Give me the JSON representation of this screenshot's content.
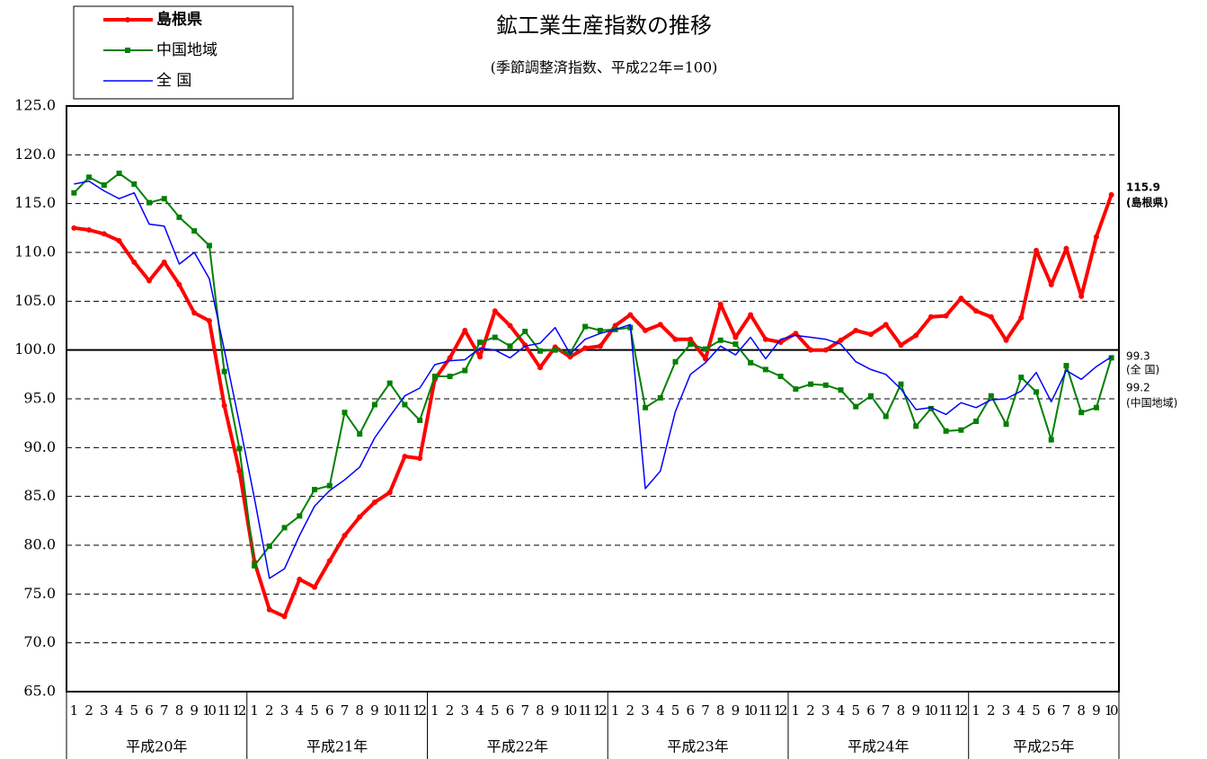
{
  "chart_data": {
    "type": "line",
    "title": "鉱工業生産指数の推移",
    "subtitle": "(季節調整済指数、平成22年=100)",
    "categories": [
      "1",
      "2",
      "3",
      "4",
      "5",
      "6",
      "7",
      "8",
      "9",
      "10",
      "11",
      "12",
      "1",
      "2",
      "3",
      "4",
      "5",
      "6",
      "7",
      "8",
      "9",
      "10",
      "11",
      "12",
      "1",
      "2",
      "3",
      "4",
      "5",
      "6",
      "7",
      "8",
      "9",
      "10",
      "11",
      "12",
      "1",
      "2",
      "3",
      "4",
      "5",
      "6",
      "7",
      "8",
      "9",
      "10",
      "11",
      "12",
      "1",
      "2",
      "3",
      "4",
      "5",
      "6",
      "7",
      "8",
      "9",
      "10",
      "11",
      "12",
      "1",
      "2",
      "3",
      "4",
      "5",
      "6",
      "7",
      "8",
      "9",
      "10"
    ],
    "year_labels": [
      "平成20年",
      "平成21年",
      "平成22年",
      "平成23年",
      "平成24年",
      "平成25年"
    ],
    "series": [
      {
        "name": "島根県",
        "color": "#ff0000",
        "marker": "circle",
        "width": 4,
        "values": [
          112.5,
          112.3,
          111.9,
          111.2,
          109.0,
          107.1,
          109.0,
          106.7,
          103.8,
          103.0,
          94.3,
          87.6,
          78.3,
          73.4,
          72.7,
          76.5,
          75.7,
          78.4,
          81.0,
          82.9,
          84.4,
          85.4,
          89.1,
          88.9,
          97.0,
          99.2,
          102.0,
          99.3,
          104.0,
          102.5,
          100.5,
          98.2,
          100.3,
          99.3,
          100.2,
          100.4,
          102.5,
          103.6,
          102.0,
          102.6,
          101.1,
          101.1,
          99.1,
          104.7,
          101.3,
          103.6,
          101.1,
          100.8,
          101.7,
          100.0,
          100.0,
          101.0,
          102.0,
          101.6,
          102.6,
          100.5,
          101.5,
          103.4,
          103.5,
          105.3,
          104.0,
          103.4,
          101.0,
          103.3,
          110.2,
          106.7,
          110.4,
          105.5,
          111.6,
          115.9
        ]
      },
      {
        "name": "中国地域",
        "color": "#008000",
        "marker": "square",
        "width": 2,
        "values": [
          116.1,
          117.7,
          116.9,
          118.1,
          117.0,
          115.1,
          115.5,
          113.6,
          112.2,
          110.7,
          97.8,
          89.9,
          77.9,
          79.9,
          81.8,
          83.0,
          85.7,
          86.1,
          93.6,
          91.4,
          94.4,
          96.6,
          94.4,
          92.8,
          97.3,
          97.3,
          97.9,
          100.8,
          101.3,
          100.4,
          101.9,
          99.9,
          100.0,
          99.7,
          102.4,
          102.0,
          102.1,
          102.3,
          94.1,
          95.1,
          98.8,
          100.6,
          100.1,
          101.0,
          100.6,
          98.7,
          98.0,
          97.3,
          96.0,
          96.5,
          96.4,
          95.9,
          94.2,
          95.3,
          93.2,
          96.5,
          92.2,
          94.0,
          91.7,
          91.8,
          92.7,
          95.3,
          92.4,
          97.2,
          95.7,
          90.8,
          98.4,
          93.6,
          94.1,
          99.2
        ]
      },
      {
        "name": "全 国",
        "color": "#0000ff",
        "marker": "none",
        "width": 1.5,
        "values": [
          117.0,
          117.3,
          116.3,
          115.5,
          116.1,
          112.9,
          112.7,
          108.8,
          110.0,
          107.3,
          100.0,
          92.5,
          84.8,
          76.6,
          77.6,
          81.0,
          84.0,
          85.6,
          86.7,
          88.0,
          91.0,
          93.2,
          95.3,
          96.1,
          98.5,
          98.9,
          99.0,
          100.2,
          100.0,
          99.2,
          100.4,
          100.7,
          102.3,
          99.6,
          101.1,
          101.7,
          102.1,
          102.6,
          85.8,
          87.6,
          93.7,
          97.5,
          98.7,
          100.4,
          99.5,
          101.3,
          99.1,
          101.1,
          101.5,
          101.3,
          101.1,
          100.6,
          98.8,
          98.0,
          97.5,
          96.0,
          93.9,
          94.1,
          93.4,
          94.6,
          94.1,
          94.9,
          95.0,
          95.8,
          97.7,
          94.7,
          97.9,
          97.0,
          98.3,
          99.3
        ]
      }
    ],
    "ylim": [
      65,
      125
    ],
    "yticks": [
      {
        "value": 65,
        "label": "65.0"
      },
      {
        "value": 70,
        "label": "70.0"
      },
      {
        "value": 75,
        "label": "75.0"
      },
      {
        "value": 80,
        "label": "80.0"
      },
      {
        "value": 85,
        "label": "85.0"
      },
      {
        "value": 90,
        "label": "90.0"
      },
      {
        "value": 95,
        "label": "95.0"
      },
      {
        "value": 100,
        "label": "100.0"
      },
      {
        "value": 105,
        "label": "105.0"
      },
      {
        "value": 110,
        "label": "110.0"
      },
      {
        "value": 115,
        "label": "115.0"
      },
      {
        "value": 120,
        "label": "120.0"
      },
      {
        "value": 125,
        "label": "125.0"
      }
    ],
    "reference_line": 100,
    "grid": true,
    "legend": "top-left",
    "annotations": [
      "115.9",
      "(島根県)",
      "99.3",
      "(全 国)",
      "99.2",
      "(中国地域)"
    ]
  }
}
